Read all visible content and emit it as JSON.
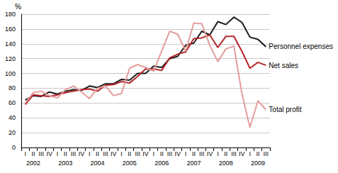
{
  "chart_data": {
    "type": "line",
    "y_label": "%",
    "categories": [
      "I",
      "II",
      "III",
      "IV",
      "I",
      "II",
      "III",
      "IV",
      "I",
      "II",
      "III",
      "IV",
      "I",
      "II",
      "III",
      "IV",
      "I",
      "II",
      "III",
      "IV",
      "I",
      "II",
      "III",
      "IV",
      "I",
      "II",
      "III",
      "IV",
      "I",
      "II",
      "III"
    ],
    "x_groups": [
      "2002",
      "2003",
      "2004",
      "2005",
      "2006",
      "2007",
      "2008",
      "2009"
    ],
    "series": [
      {
        "name": "Personnel expenses",
        "color": "#1a1a1a",
        "values": [
          64,
          70,
          69,
          75,
          72,
          76,
          78,
          77,
          83,
          81,
          86,
          86,
          92,
          91,
          100,
          100,
          110,
          108,
          120,
          123,
          138,
          141,
          157,
          152,
          170,
          166,
          176,
          169,
          149,
          146,
          136
        ]
      },
      {
        "name": "Net sales",
        "color": "#b3262a",
        "values": [
          58,
          71,
          70,
          69,
          71,
          74,
          76,
          78,
          79,
          76,
          84,
          85,
          89,
          87,
          96,
          106,
          106,
          104,
          121,
          126,
          129,
          147,
          148,
          152,
          135,
          150,
          150,
          130,
          107,
          115,
          111
        ]
      },
      {
        "name": "Total profit",
        "color": "#e59c9c",
        "values": [
          60,
          74,
          76,
          70,
          67,
          78,
          83,
          75,
          66,
          80,
          83,
          70,
          73,
          107,
          112,
          108,
          103,
          130,
          157,
          153,
          130,
          168,
          167,
          138,
          116,
          133,
          137,
          73,
          27,
          63,
          51
        ]
      }
    ],
    "ylim": [
      0,
      180
    ],
    "yticks": [
      0,
      20,
      40,
      60,
      80,
      100,
      120,
      140,
      160,
      180
    ],
    "grid": true
  }
}
